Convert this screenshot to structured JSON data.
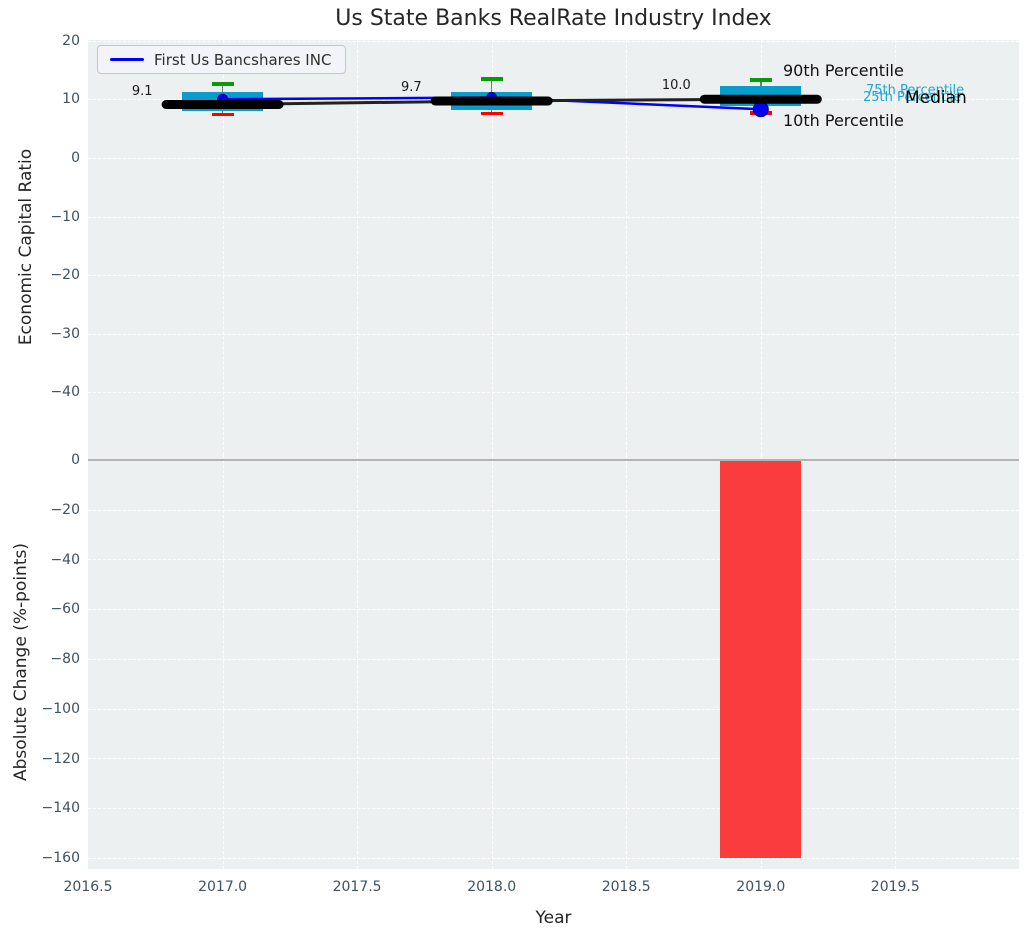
{
  "title": "Us State Banks RealRate Industry Index",
  "legend": {
    "series_label": "First Us Bancshares INC"
  },
  "axes": {
    "x": {
      "label": "Year",
      "tick_labels": [
        "2016.5",
        "2017.0",
        "2017.5",
        "2018.0",
        "2018.5",
        "2019.0",
        "2019.5"
      ],
      "tick_values": [
        2016.5,
        2017,
        2017.5,
        2018,
        2018.5,
        2019,
        2019.5
      ],
      "lim": [
        2016.5,
        2019.96
      ]
    },
    "top": {
      "ylabel": "Economic Capital Ratio",
      "tick_labels": [
        "20",
        "10",
        "0",
        "−10",
        "−20",
        "−30",
        "−40"
      ],
      "tick_values": [
        20,
        10,
        0,
        -10,
        -20,
        -30,
        -40
      ],
      "lim": [
        -50.6,
        20.1
      ]
    },
    "bottom": {
      "ylabel": "Absolute Change (%-points)",
      "tick_labels": [
        "0",
        "−20",
        "−40",
        "−60",
        "−80",
        "−100",
        "−120",
        "−140",
        "−160"
      ],
      "tick_values": [
        0,
        -20,
        -40,
        -60,
        -80,
        -100,
        -120,
        -140,
        -160
      ],
      "lim": [
        -164.4,
        2
      ]
    }
  },
  "annotations": {
    "p90": "90th Percentile",
    "p75": "75th Percentile",
    "p25": "25th Percentile",
    "median": "Median",
    "p10": "10th Percentile"
  },
  "colors": {
    "box_fill": "#099dce",
    "cap_top": "#089a08",
    "cap_bottom": "#ff0000",
    "median_line": "#000000",
    "median_connector": "#222222",
    "company_line": "#0000ff",
    "company_dot_edge": "#000080",
    "bar_negative": "#fa3c3c",
    "percentile_label_cyan": "#1ba7d3",
    "axes_background": "#ecf0f1",
    "zero_line": "#b3b3b3"
  },
  "chart_data": [
    {
      "type": "boxplot",
      "title": "Us State Banks RealRate Industry Index",
      "xlabel": "Year",
      "ylabel": "Economic Capital Ratio",
      "x": [
        2017,
        2018,
        2019
      ],
      "xlim": [
        2016.5,
        2019.96
      ],
      "ylim": [
        -50.6,
        20.1
      ],
      "grid": true,
      "legend_position": "upper left",
      "boxes": [
        {
          "x": 2017,
          "p10": 7.4,
          "p25": 8.0,
          "median": 9.1,
          "p75": 11.3,
          "p90": 12.6
        },
        {
          "x": 2018,
          "p10": 7.6,
          "p25": 8.2,
          "median": 9.7,
          "p75": 11.3,
          "p90": 13.5
        },
        {
          "x": 2019,
          "p10": 7.7,
          "p25": 8.9,
          "median": 10.0,
          "p75": 12.2,
          "p90": 13.3
        }
      ],
      "median_labels": [
        "9.1",
        "9.7",
        "10.0"
      ],
      "series": [
        {
          "name": "Industry median",
          "values": [
            9.1,
            9.7,
            10.0
          ]
        },
        {
          "name": "First Us Bancshares INC",
          "values": [
            10.0,
            10.3,
            8.3
          ]
        }
      ]
    },
    {
      "type": "bar",
      "xlabel": "Year",
      "ylabel": "Absolute Change (%-points)",
      "x": [
        2019
      ],
      "values": [
        -160.0
      ],
      "xlim": [
        2016.5,
        2019.96
      ],
      "ylim": [
        -164.4,
        2
      ],
      "grid": true
    }
  ]
}
